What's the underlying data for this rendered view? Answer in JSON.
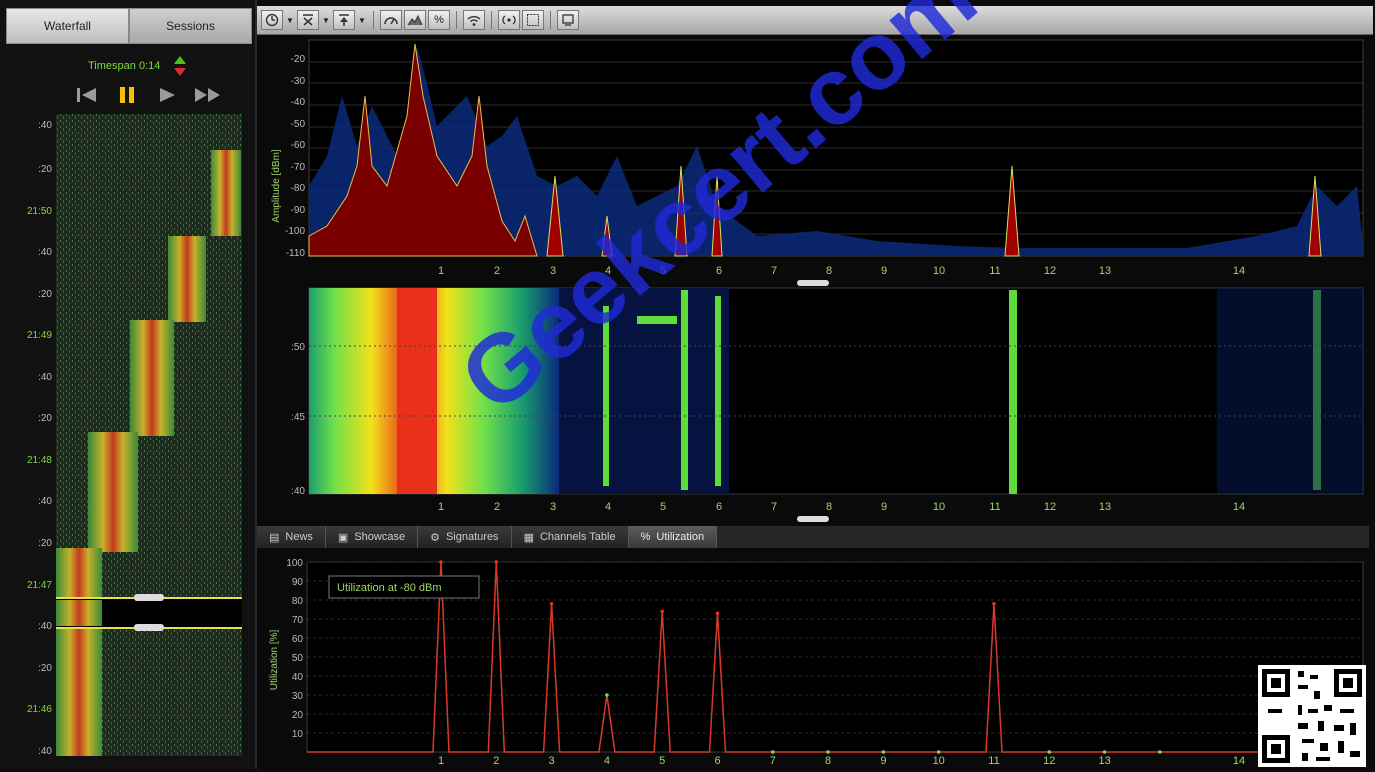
{
  "left_panel": {
    "tabs": [
      "Waterfall",
      "Sessions"
    ],
    "timespan": "Timespan 0:14",
    "controls": [
      "skip-back-icon",
      "pause-icon",
      "play-icon",
      "fast-forward-icon"
    ],
    "time_labels": [
      ":40",
      ":20",
      "21:50",
      ":40",
      ":20",
      "21:49",
      ":40",
      ":20",
      "21:48",
      ":40",
      ":20",
      "21:47",
      ":40",
      ":20",
      "21:46",
      ":40"
    ]
  },
  "toolbar": {
    "buttons": [
      "clock-icon",
      "max-hold-icon",
      "min-hold-icon",
      "gauge-icon",
      "chart-icon",
      "percent-icon",
      "wifi-icon",
      "signal-icon",
      "grid-icon",
      "screen-icon"
    ],
    "percent_label": "%"
  },
  "spectrum": {
    "ylabel": "Amplitude [dBm]",
    "yticks": [
      "-20",
      "-30",
      "-40",
      "-50",
      "-60",
      "-70",
      "-80",
      "-90",
      "-100",
      "-110"
    ],
    "xticks": [
      "1",
      "2",
      "3",
      "4",
      "5",
      "6",
      "7",
      "8",
      "9",
      "10",
      "11",
      "12",
      "13",
      "14"
    ]
  },
  "waterfall": {
    "yticks": [
      ":50",
      ":45",
      ":40"
    ],
    "xticks": [
      "1",
      "2",
      "3",
      "4",
      "5",
      "6",
      "7",
      "8",
      "9",
      "10",
      "11",
      "12",
      "13",
      "14"
    ]
  },
  "bottom_tabs": [
    {
      "label": "News",
      "icon": "news-icon"
    },
    {
      "label": "Showcase",
      "icon": "showcase-icon"
    },
    {
      "label": "Signatures",
      "icon": "signatures-icon"
    },
    {
      "label": "Channels Table",
      "icon": "table-icon"
    },
    {
      "label": "Utilization",
      "icon": "percent-icon"
    }
  ],
  "utilization": {
    "ylabel": "Utilization [%]",
    "yticks": [
      "100",
      "90",
      "80",
      "70",
      "60",
      "50",
      "40",
      "30",
      "20",
      "10"
    ],
    "xticks": [
      "1",
      "2",
      "3",
      "4",
      "5",
      "6",
      "7",
      "8",
      "9",
      "10",
      "11",
      "12",
      "13",
      "14"
    ],
    "legend": "Utilization at -80 dBm"
  },
  "chart_data": {
    "type": "line",
    "title": "",
    "xlabel": "",
    "ylabel": "Utilization [%]",
    "ylim": [
      0,
      100
    ],
    "x": [
      1,
      2,
      3,
      4,
      5,
      6,
      7,
      8,
      9,
      10,
      11,
      12,
      13,
      14
    ],
    "series": [
      {
        "name": "Utilization at -80 dBm",
        "values": [
          100,
          100,
          78,
          30,
          74,
          73,
          0,
          0,
          0,
          0,
          78,
          0,
          0,
          0
        ]
      }
    ]
  },
  "watermark": "Geekcert.com"
}
